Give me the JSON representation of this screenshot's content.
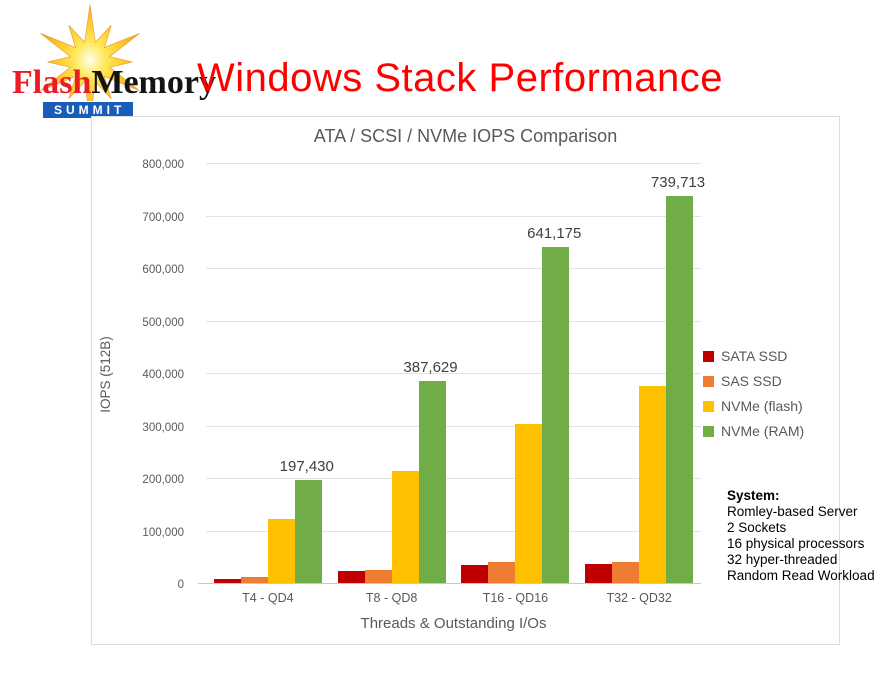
{
  "header": {
    "logo": {
      "flash": "Flash",
      "memory": "Memory",
      "summit": "SUMMIT"
    },
    "title": "Windows Stack Performance"
  },
  "chart_data": {
    "type": "bar",
    "title": "ATA / SCSI / NVMe IOPS Comparison",
    "xlabel": "Threads & Outstanding I/Os",
    "ylabel": "IOPS (512B)",
    "categories": [
      "T4 - QD4",
      "T8 - QD8",
      "T16 - QD16",
      "T32 - QD32"
    ],
    "series": [
      {
        "name": "SATA SSD",
        "color": "#C00000",
        "values": [
          10000,
          25000,
          36000,
          39000
        ]
      },
      {
        "name": "SAS SSD",
        "color": "#ED7D31",
        "values": [
          14000,
          27000,
          41000,
          42000
        ]
      },
      {
        "name": "NVMe (flash)",
        "color": "#FFC000",
        "values": [
          124000,
          216000,
          305000,
          378000
        ]
      },
      {
        "name": "NVMe (RAM)",
        "color": "#70AD47",
        "values": [
          197430,
          387629,
          641175,
          739713
        ],
        "data_labels": [
          "197,430",
          "387,629",
          "641,175",
          "739,713"
        ]
      }
    ],
    "ylim": [
      0,
      800000
    ],
    "yticks": [
      "0",
      "100,000",
      "200,000",
      "300,000",
      "400,000",
      "500,000",
      "600,000",
      "700,000",
      "800,000"
    ],
    "grid": true,
    "legend_position": "right"
  },
  "annotation": {
    "heading": "System:",
    "lines": [
      "Romley-based Server",
      "2 Sockets",
      "16 physical processors",
      "32 hyper-threaded",
      "Random Read Workload"
    ]
  }
}
